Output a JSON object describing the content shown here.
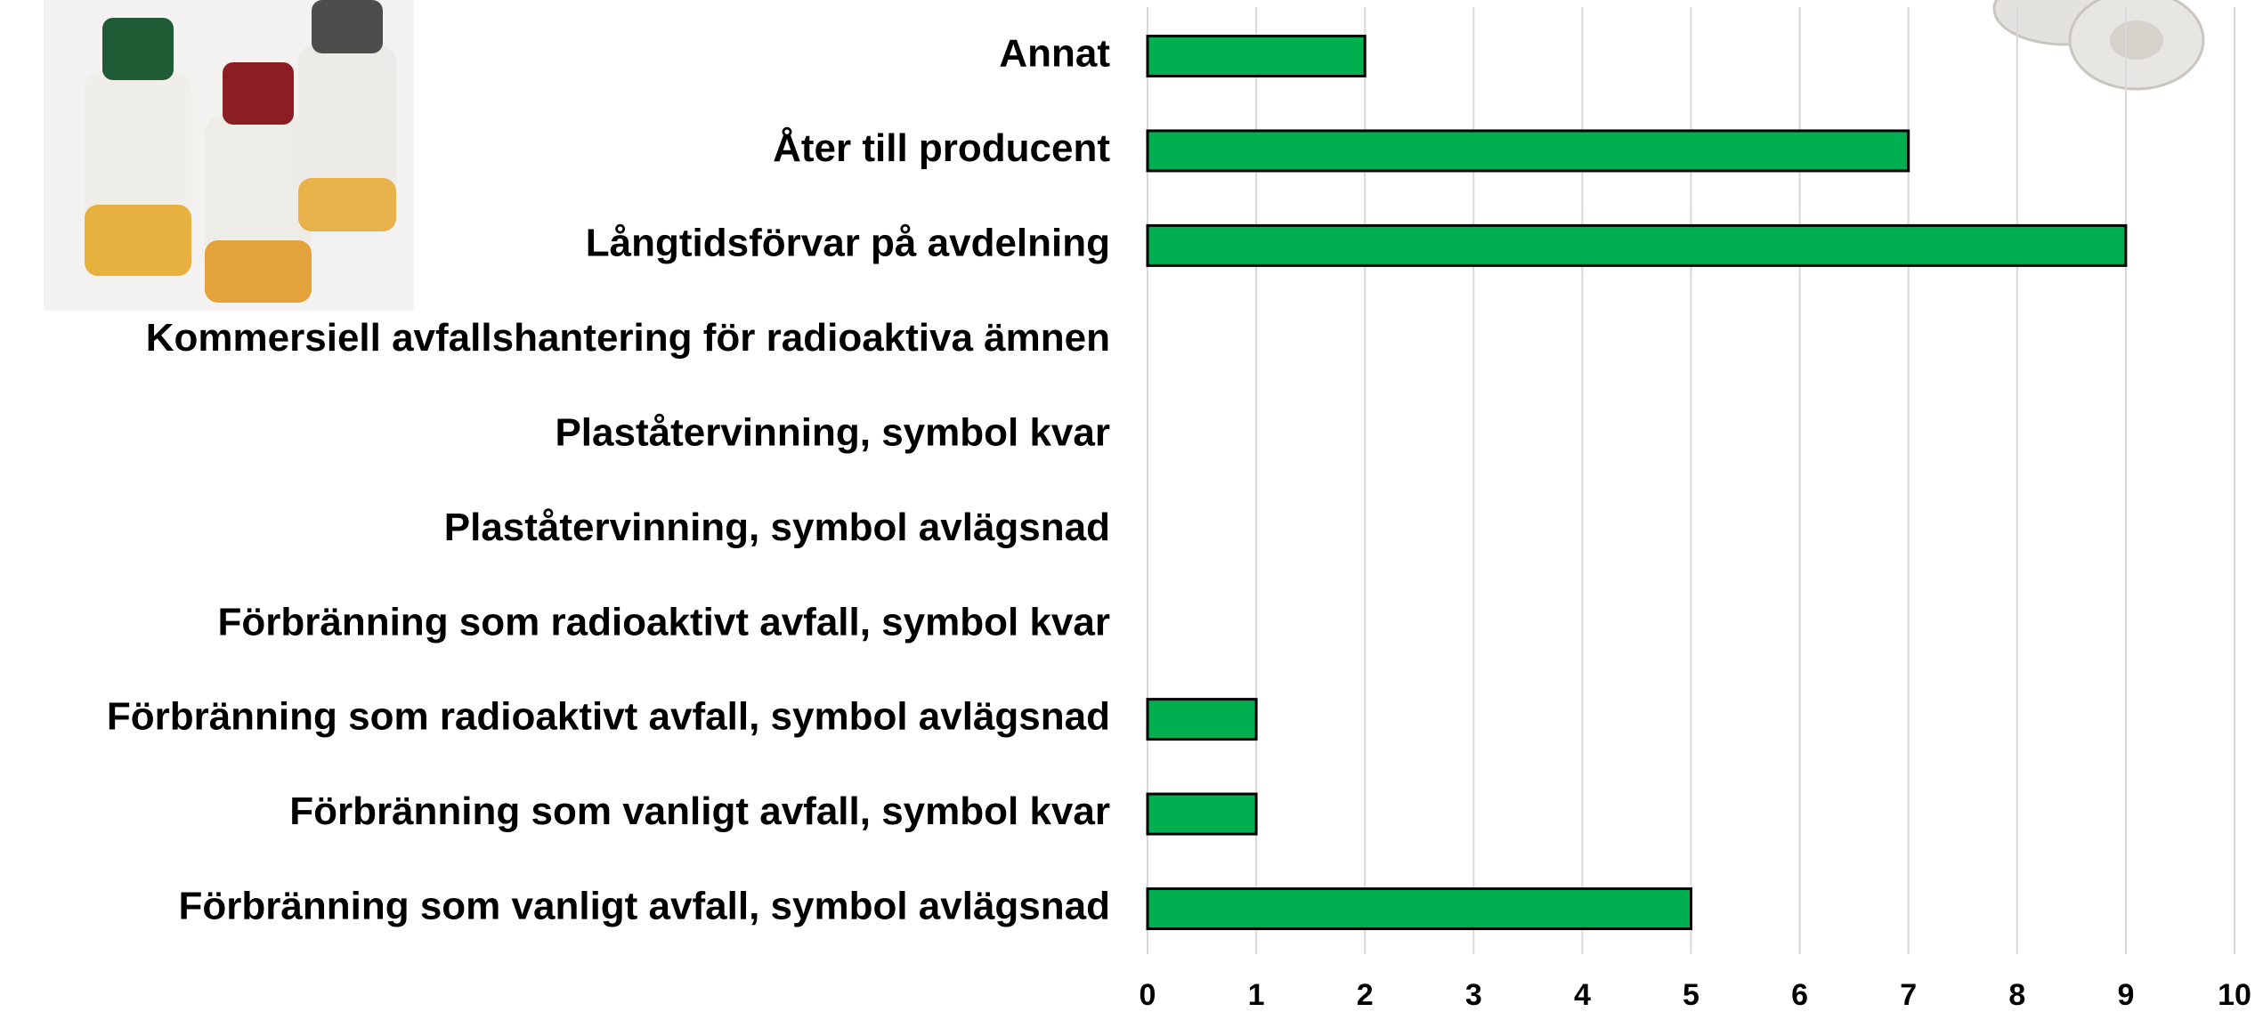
{
  "chart_data": {
    "type": "bar",
    "orientation": "horizontal",
    "categories": [
      "Annat",
      "Åter till producent",
      "Långtidsförvar på avdelning",
      "Kommersiell avfallshantering för radioaktiva ämnen",
      "Plaståtervinning, symbol kvar",
      "Plaståtervinning, symbol avlägsnad",
      "Förbränning som radioaktivt avfall, symbol kvar",
      "Förbränning som radioaktivt avfall, symbol avlägsnad",
      "Förbränning som vanligt avfall, symbol kvar",
      "Förbränning som vanligt avfall, symbol avlägsnad"
    ],
    "values": [
      2,
      7,
      9,
      0,
      0,
      0,
      0,
      1,
      1,
      5
    ],
    "color": "#00b050",
    "xlim": [
      0,
      10
    ],
    "xticks": [
      0,
      1,
      2,
      3,
      4,
      5,
      6,
      7,
      8,
      9,
      10
    ],
    "grid": true
  }
}
